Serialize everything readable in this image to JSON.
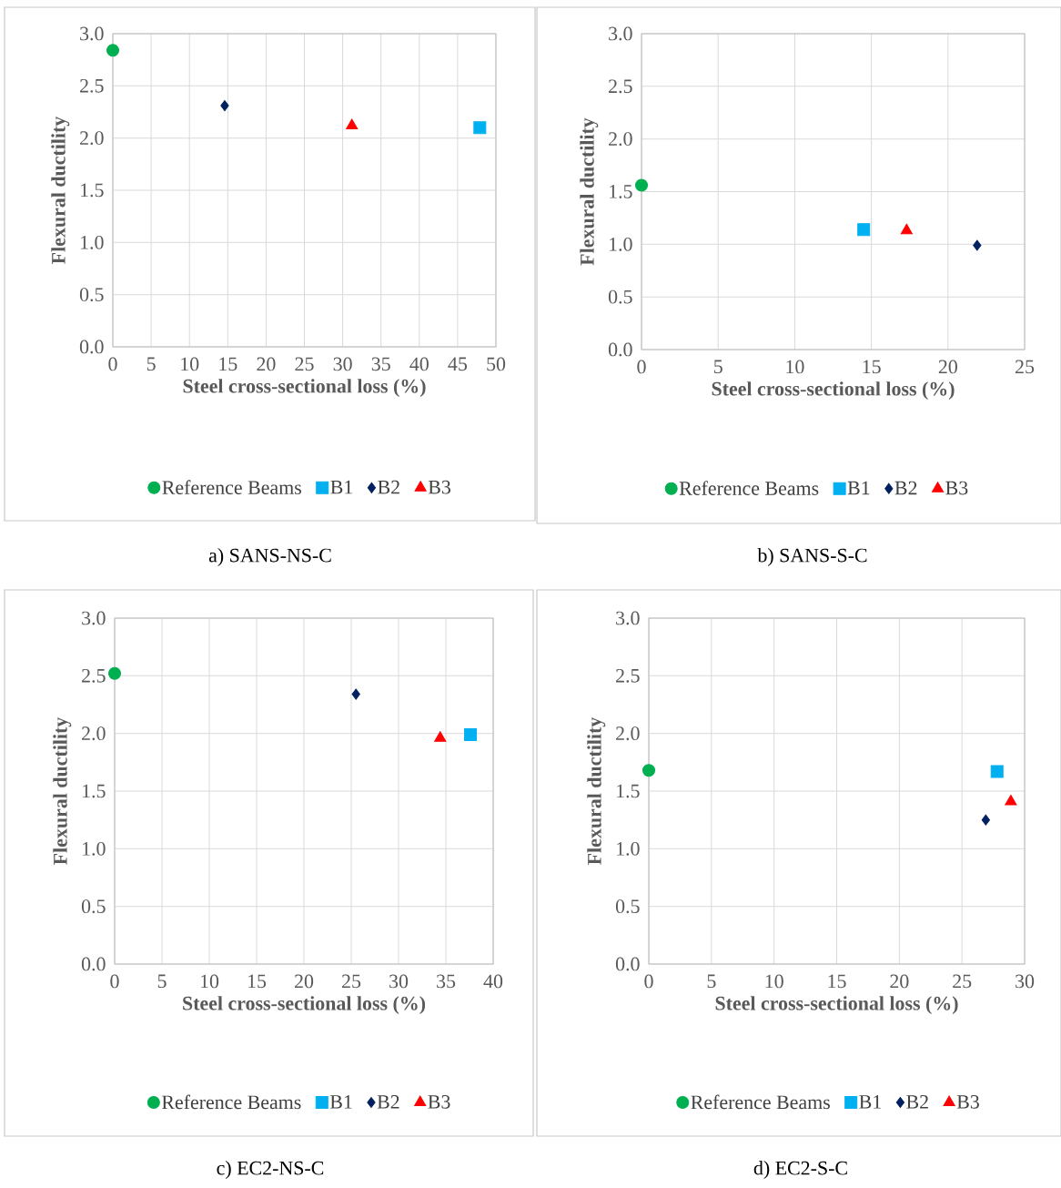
{
  "chart_data": [
    {
      "type": "scatter",
      "xlabel": "Steel cross-sectional loss (%)",
      "ylabel": "Flexural ductility",
      "annotations": [
        "a) SANS-NS-C"
      ],
      "xlim": [
        0,
        50
      ],
      "xticks": [
        0,
        5,
        10,
        15,
        20,
        25,
        30,
        35,
        40,
        45,
        50
      ],
      "ylim": [
        0,
        3
      ],
      "yticks": [
        {
          "value": 0,
          "label": "0.0"
        },
        {
          "value": 0.5,
          "label": "0.5"
        },
        {
          "value": 1,
          "label": "1.0"
        },
        {
          "value": 1.5,
          "label": "1.5"
        },
        {
          "value": 2,
          "label": "2.0"
        },
        {
          "value": 2.5,
          "label": "2.5"
        },
        {
          "value": 3,
          "label": "3.0"
        }
      ],
      "grid": true,
      "legend": "bottom",
      "series": [
        {
          "name": "Reference Beams",
          "color": "#00b050",
          "marker": "circle",
          "x": [
            0
          ],
          "values": [
            2.84
          ]
        },
        {
          "name": "B1",
          "color": "#00b0f0",
          "marker": "square",
          "x": [
            47.9
          ],
          "values": [
            2.1
          ]
        },
        {
          "name": "B2",
          "color": "#002060",
          "marker": "diamond",
          "x": [
            14.6
          ],
          "values": [
            2.31
          ]
        },
        {
          "name": "B3",
          "color": "#ff0000",
          "marker": "triangle",
          "x": [
            31.2
          ],
          "values": [
            2.12
          ]
        }
      ]
    },
    {
      "type": "scatter",
      "xlabel": "Steel cross-sectional loss (%)",
      "ylabel": "Flexural ductility",
      "annotations": [
        "b) SANS-S-C"
      ],
      "xlim": [
        0,
        25
      ],
      "xticks": [
        0,
        5,
        10,
        15,
        20,
        25
      ],
      "ylim": [
        0,
        3
      ],
      "yticks": [
        {
          "value": 0,
          "label": "0.0"
        },
        {
          "value": 0.5,
          "label": "0.5"
        },
        {
          "value": 1,
          "label": "1.0"
        },
        {
          "value": 1.5,
          "label": "1.5"
        },
        {
          "value": 2,
          "label": "2.0"
        },
        {
          "value": 2.5,
          "label": "2.5"
        },
        {
          "value": 3,
          "label": "3.0"
        }
      ],
      "grid": true,
      "legend": "bottom",
      "series": [
        {
          "name": "Reference Beams",
          "color": "#00b050",
          "marker": "circle",
          "x": [
            0
          ],
          "values": [
            1.56
          ]
        },
        {
          "name": "B1",
          "color": "#00b0f0",
          "marker": "square",
          "x": [
            14.5
          ],
          "values": [
            1.14
          ]
        },
        {
          "name": "B2",
          "color": "#002060",
          "marker": "diamond",
          "x": [
            21.9
          ],
          "values": [
            0.99
          ]
        },
        {
          "name": "B3",
          "color": "#ff0000",
          "marker": "triangle",
          "x": [
            17.3
          ],
          "values": [
            1.13
          ]
        }
      ]
    },
    {
      "type": "scatter",
      "xlabel": "Steel cross-sectional loss (%)",
      "ylabel": "Flexural ductility",
      "annotations": [
        "c) EC2-NS-C"
      ],
      "xlim": [
        0,
        40
      ],
      "xticks": [
        0,
        5,
        10,
        15,
        20,
        25,
        30,
        35,
        40
      ],
      "ylim": [
        0,
        3
      ],
      "yticks": [
        {
          "value": 0,
          "label": "0.0"
        },
        {
          "value": 0.5,
          "label": "0.5"
        },
        {
          "value": 1,
          "label": "1.0"
        },
        {
          "value": 1.5,
          "label": "1.5"
        },
        {
          "value": 2,
          "label": "2.0"
        },
        {
          "value": 2.5,
          "label": "2.5"
        },
        {
          "value": 3,
          "label": "3.0"
        }
      ],
      "grid": true,
      "legend": "bottom",
      "series": [
        {
          "name": "Reference Beams",
          "color": "#00b050",
          "marker": "circle",
          "x": [
            0
          ],
          "values": [
            2.52
          ]
        },
        {
          "name": "B1",
          "color": "#00b0f0",
          "marker": "square",
          "x": [
            37.6
          ],
          "values": [
            1.99
          ]
        },
        {
          "name": "B2",
          "color": "#002060",
          "marker": "diamond",
          "x": [
            25.5
          ],
          "values": [
            2.34
          ]
        },
        {
          "name": "B3",
          "color": "#ff0000",
          "marker": "triangle",
          "x": [
            34.4
          ],
          "values": [
            1.96
          ]
        }
      ]
    },
    {
      "type": "scatter",
      "xlabel": "Steel cross-sectional loss (%)",
      "ylabel": "Flexural ductility",
      "annotations": [
        "d) EC2-S-C"
      ],
      "xlim": [
        0,
        30
      ],
      "xticks": [
        0,
        5,
        10,
        15,
        20,
        25,
        30
      ],
      "ylim": [
        0,
        3
      ],
      "yticks": [
        {
          "value": 0,
          "label": "0.0"
        },
        {
          "value": 0.5,
          "label": "0.5"
        },
        {
          "value": 1,
          "label": "1.0"
        },
        {
          "value": 1.5,
          "label": "1.5"
        },
        {
          "value": 2,
          "label": "2.0"
        },
        {
          "value": 2.5,
          "label": "2.5"
        },
        {
          "value": 3,
          "label": "3.0"
        }
      ],
      "grid": true,
      "legend": "bottom",
      "series": [
        {
          "name": "Reference Beams",
          "color": "#00b050",
          "marker": "circle",
          "x": [
            0
          ],
          "values": [
            1.68
          ]
        },
        {
          "name": "B1",
          "color": "#00b0f0",
          "marker": "square",
          "x": [
            27.8
          ],
          "values": [
            1.67
          ]
        },
        {
          "name": "B2",
          "color": "#002060",
          "marker": "diamond",
          "x": [
            26.9
          ],
          "values": [
            1.25
          ]
        },
        {
          "name": "B3",
          "color": "#ff0000",
          "marker": "triangle",
          "x": [
            28.9
          ],
          "values": [
            1.41
          ]
        }
      ]
    }
  ]
}
